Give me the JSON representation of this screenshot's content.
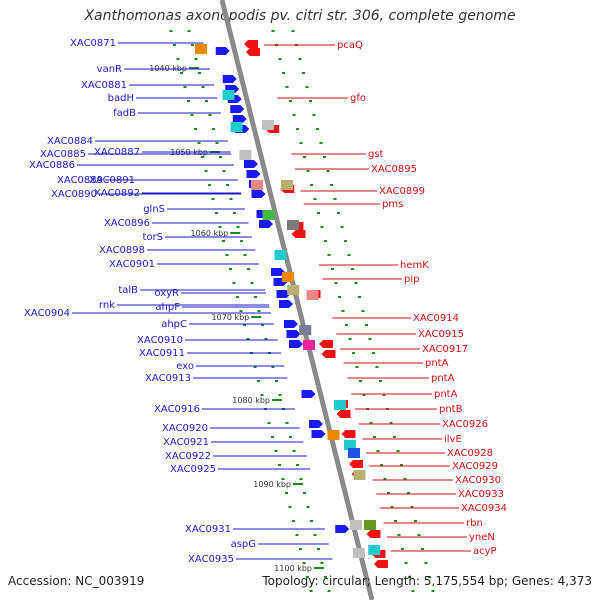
{
  "title": "Xanthomonas axonopodis pv. citri str. 306, complete genome",
  "footer": {
    "accession": "Accession: NC_003919",
    "topology": "Topology: circular; Length: 5,175,554 bp; Genes: 4,373"
  },
  "ticks": [
    "1040 kbp",
    "1050 kbp",
    "1060 kbp",
    "1070 kbp",
    "1080 kbp",
    "1090 kbp",
    "1100 kbp"
  ],
  "left_labels": [
    "XAC0871",
    "vanR",
    "XAC0881",
    "badH",
    "fadB",
    "XAC0884",
    "XAC0885",
    "XAC0887",
    "XAC0886",
    "XAC0889",
    "XAC0891",
    "XAC0890",
    "XAC0892",
    "glnS",
    "XAC0896",
    "torS",
    "XAC0898",
    "XAC0901",
    "talB",
    "oxyR",
    "rnk",
    "ahpF",
    "XAC0904",
    "ahpC",
    "XAC0910",
    "XAC0911",
    "exo",
    "XAC0913",
    "XAC0916",
    "XAC0920",
    "XAC0921",
    "XAC0922",
    "XAC0925",
    "XAC0931",
    "aspG",
    "XAC0935"
  ],
  "right_labels": [
    "pcaQ",
    "gfo",
    "gst",
    "XAC0895",
    "XAC0899",
    "pms",
    "hemK",
    "pip",
    "XAC0914",
    "XAC0915",
    "XAC0917",
    "pntA",
    "pntA",
    "pntA",
    "pntB",
    "XAC0926",
    "ilvE",
    "XAC0928",
    "XAC0929",
    "XAC0930",
    "XAC0933",
    "XAC0934",
    "rbn",
    "yneN",
    "acyP"
  ],
  "colors": {
    "forward_arrow": "#1a1aee",
    "reverse_arrow": "#ee1111",
    "backbone": "#8a8a8a",
    "left_label": "#1a1acc",
    "right_label": "#cc1111"
  }
}
